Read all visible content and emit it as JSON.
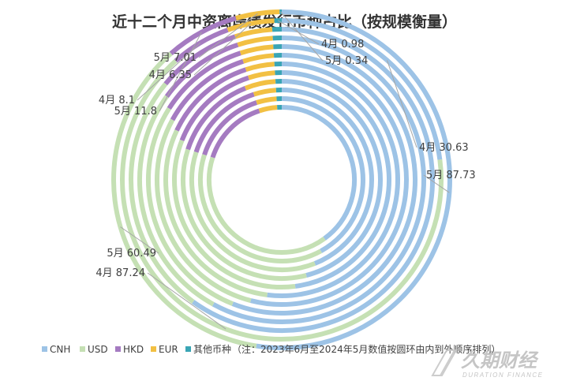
{
  "chart_data": {
    "type": "donut-multi-ring",
    "title": "近十二个月中资离岸债发行币种占比（按规模衡量）",
    "ring_order": "inner-to-outer: 2023年6月 → 2024年5月",
    "categories": [
      "CNH",
      "USD",
      "HKD",
      "EUR",
      "其他币种"
    ],
    "rings": [
      {
        "values": [
          40,
          40,
          15,
          4,
          1
        ]
      },
      {
        "values": [
          42,
          38,
          15,
          4,
          1
        ]
      },
      {
        "values": [
          44,
          36,
          15,
          4,
          1
        ]
      },
      {
        "values": [
          46,
          34,
          14,
          5,
          1
        ]
      },
      {
        "values": [
          48,
          33,
          14,
          4,
          1
        ]
      },
      {
        "values": [
          52,
          30,
          13,
          4,
          1
        ]
      },
      {
        "values": [
          54,
          29,
          12,
          4,
          1
        ]
      },
      {
        "values": [
          56,
          28,
          11,
          4,
          1
        ]
      },
      {
        "values": [
          58,
          27,
          10,
          4,
          1
        ]
      },
      {
        "values": [
          60,
          26,
          9,
          4,
          1
        ]
      },
      {
        "name": "4月",
        "values": [
          30.63,
          87.24,
          8.1,
          6.35,
          0.98
        ]
      },
      {
        "name": "5月",
        "values": [
          87.73,
          60.49,
          11.8,
          7.01,
          0.34
        ]
      }
    ],
    "data_labels": [
      {
        "text": "4月 0.98",
        "series": "其他币种",
        "ring": "4月"
      },
      {
        "text": "5月 0.34",
        "series": "其他币种",
        "ring": "5月"
      },
      {
        "text": "5月 7.01",
        "series": "EUR",
        "ring": "5月"
      },
      {
        "text": "4月 6.35",
        "series": "EUR",
        "ring": "4月"
      },
      {
        "text": "4月 8.1",
        "series": "HKD",
        "ring": "4月"
      },
      {
        "text": "5月 11.8",
        "series": "HKD",
        "ring": "5月"
      },
      {
        "text": "4月 30.63",
        "series": "CNH",
        "ring": "4月"
      },
      {
        "text": "5月 87.73",
        "series": "CNH",
        "ring": "5月"
      },
      {
        "text": "5月 60.49",
        "series": "USD",
        "ring": "5月"
      },
      {
        "text": "4月 87.24",
        "series": "USD",
        "ring": "4月"
      }
    ],
    "legend": {
      "position": "bottom",
      "items": [
        {
          "label": "CNH",
          "color": "#9dc3e6"
        },
        {
          "label": "USD",
          "color": "#c5e0b4"
        },
        {
          "label": "HKD",
          "color": "#a57bc1"
        },
        {
          "label": "EUR",
          "color": "#f2c043"
        },
        {
          "label": "其他币种",
          "color": "#3aa5b5"
        }
      ],
      "note": "（注：2023年6月至2024年5月数值按圆环由内到外顺序排列）"
    }
  },
  "watermark": {
    "name": "久期财经",
    "sub": "DURATION FINANCE"
  }
}
